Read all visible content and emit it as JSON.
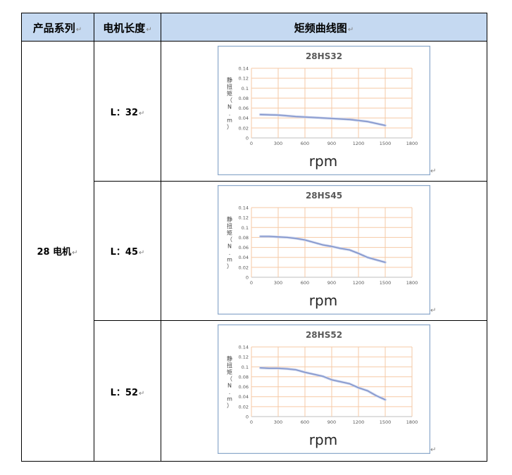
{
  "table": {
    "headers": [
      "产品系列",
      "电机长度",
      "矩频曲线图"
    ],
    "series_label": "28 电机",
    "paragraph_mark": "↵"
  },
  "rows": [
    {
      "length_label": "L：32"
    },
    {
      "length_label": "L：45"
    },
    {
      "length_label": "L：52"
    }
  ],
  "chart_data": [
    {
      "type": "line",
      "title": "28HS32",
      "xlabel": "rpm",
      "ylabel": "静扭矩（N.m）",
      "x_ticks": [
        0,
        300,
        600,
        900,
        1200,
        1500,
        1800
      ],
      "y_ticks": [
        0,
        0.02,
        0.04,
        0.06,
        0.08,
        0.1,
        0.12,
        0.14
      ],
      "y_tick_labels": [
        "0",
        "0.02",
        "0.04",
        "0.06",
        "0.08",
        "0.1",
        "0.12",
        "0.14"
      ],
      "xlim": [
        0,
        1800
      ],
      "ylim": [
        0,
        0.14
      ],
      "grid": true,
      "series": [
        {
          "color": "#7b8fc9",
          "x": [
            100,
            300,
            500,
            700,
            900,
            1100,
            1300,
            1500
          ],
          "y": [
            0.047,
            0.046,
            0.043,
            0.041,
            0.039,
            0.037,
            0.033,
            0.025
          ]
        }
      ]
    },
    {
      "type": "line",
      "title": "28HS45",
      "xlabel": "rpm",
      "ylabel": "静扭矩（N.m）",
      "x_ticks": [
        0,
        300,
        600,
        900,
        1200,
        1500,
        1800
      ],
      "y_ticks": [
        0,
        0.02,
        0.04,
        0.06,
        0.08,
        0.1,
        0.12,
        0.14
      ],
      "y_tick_labels": [
        "0",
        "0.02",
        "0.04",
        "0.06",
        "0.08",
        "0.1",
        "0.12",
        "0.14"
      ],
      "xlim": [
        0,
        1800
      ],
      "ylim": [
        0,
        0.14
      ],
      "grid": true,
      "series": [
        {
          "color": "#7b8fc9",
          "x": [
            100,
            200,
            300,
            400,
            500,
            600,
            700,
            800,
            900,
            1000,
            1100,
            1200,
            1300,
            1400,
            1500
          ],
          "y": [
            0.082,
            0.082,
            0.081,
            0.08,
            0.078,
            0.075,
            0.07,
            0.065,
            0.062,
            0.058,
            0.055,
            0.048,
            0.04,
            0.035,
            0.03
          ]
        }
      ]
    },
    {
      "type": "line",
      "title": "28HS52",
      "xlabel": "rpm",
      "ylabel": "静扭矩（N.m）",
      "x_ticks": [
        0,
        300,
        600,
        900,
        1200,
        1500,
        1800
      ],
      "y_ticks": [
        0,
        0.02,
        0.04,
        0.06,
        0.08,
        0.1,
        0.12,
        0.14
      ],
      "y_tick_labels": [
        "0",
        "0.02",
        "0.04",
        "0.06",
        "0.08",
        "0.1",
        "0.12",
        "0.14"
      ],
      "xlim": [
        0,
        1800
      ],
      "ylim": [
        0,
        0.14
      ],
      "grid": true,
      "series": [
        {
          "color": "#7b8fc9",
          "x": [
            100,
            200,
            300,
            400,
            500,
            600,
            700,
            800,
            900,
            1000,
            1100,
            1200,
            1300,
            1400,
            1500
          ],
          "y": [
            0.098,
            0.097,
            0.097,
            0.096,
            0.094,
            0.089,
            0.085,
            0.081,
            0.074,
            0.07,
            0.066,
            0.058,
            0.052,
            0.042,
            0.034
          ]
        }
      ]
    }
  ]
}
